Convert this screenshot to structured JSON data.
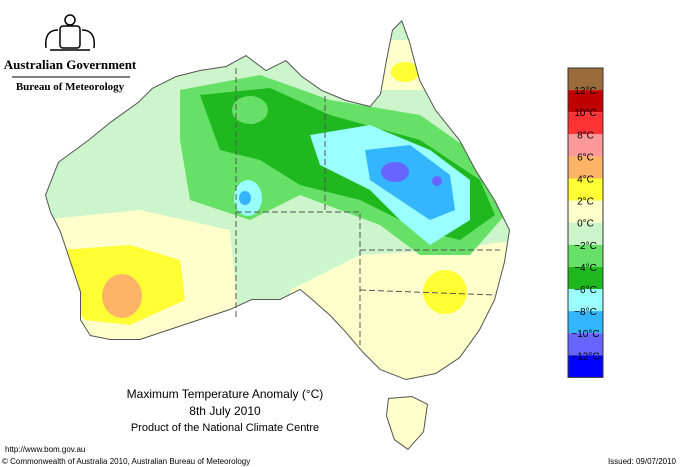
{
  "header": {
    "government": "Australian Government",
    "bureau": "Bureau of Meteorology"
  },
  "map": {
    "title": "Maximum Temperature Anomaly (°C)",
    "date": "8th July 2010",
    "product": "Product of the National Climate Centre"
  },
  "legend": {
    "colors": [
      "#9c6b3c",
      "#c00000",
      "#ff3333",
      "#ff9999",
      "#ffb366",
      "#ffff33",
      "#ffffcc",
      "#ccf5cc",
      "#66e066",
      "#1fb81f",
      "#99ffff",
      "#33b5ff",
      "#6666ff",
      "#0000ff"
    ],
    "labels": [
      "12°C",
      "10°C",
      "8°C",
      "6°C",
      "4°C",
      "2°C",
      "0°C",
      "−2°C",
      "−4°C",
      "−6°C",
      "−8°C",
      "−10°C",
      "−12°C"
    ]
  },
  "footer": {
    "url": "http://www.bom.gov.au",
    "copyright": "© Commonwealth of Australia 2010, Australian Bureau of Meteorology",
    "issued": "Issued: 09/07/2010"
  }
}
